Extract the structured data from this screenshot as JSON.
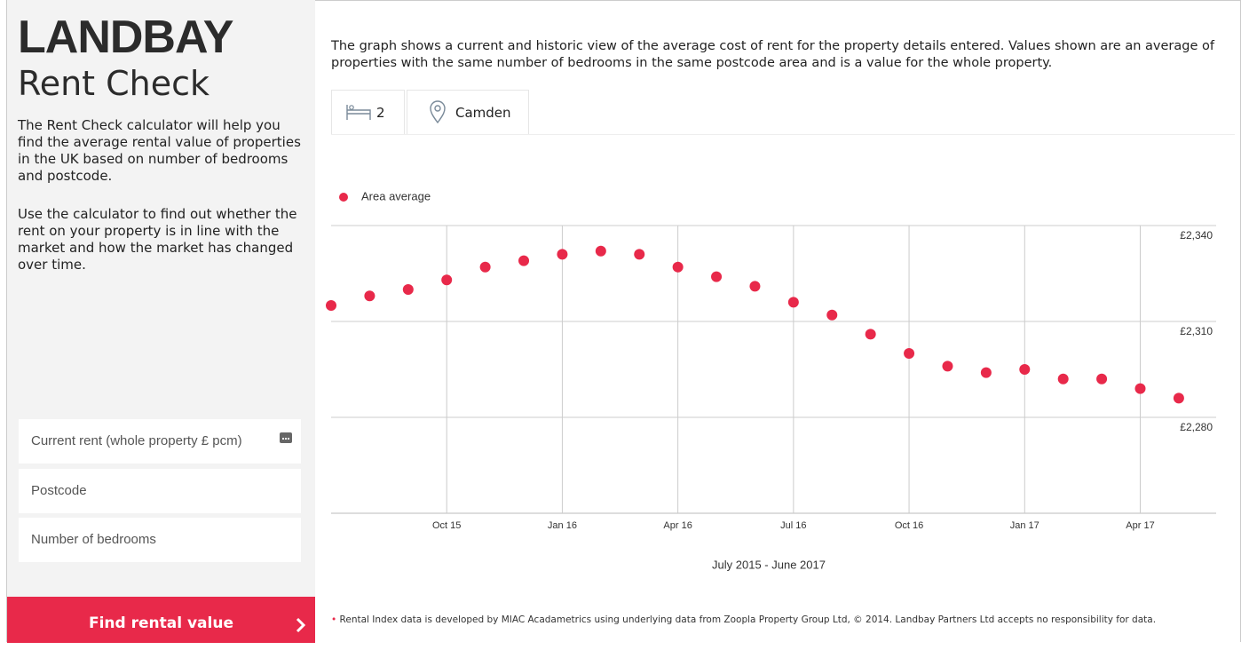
{
  "sidebar": {
    "logo": "LANDBAY",
    "product": "Rent Check",
    "intro": [
      "The Rent Check calculator will help you find the average rental value of properties in the UK based on number of bedrooms and postcode.",
      "Use the calculator to find out whether the rent on your property is in line with the market and how the market has changed over time."
    ],
    "fields": [
      "Current rent (whole property £ pcm)",
      "Postcode",
      "Number of bedrooms"
    ],
    "button": "Find rental value"
  },
  "description": "The graph shows a current and historic view of the average cost of rent for the property details entered. Values shown are an average of properties with the same number of bedrooms in the same postcode area and is a value for the whole property.",
  "filters": {
    "bedrooms": "2",
    "area": "Camden"
  },
  "chart_data": {
    "type": "scatter",
    "categories": [
      null,
      null,
      null,
      "Oct 15",
      null,
      null,
      "Jan 16",
      null,
      null,
      "Apr 16",
      null,
      null,
      "Jul 16",
      null,
      null,
      "Oct 16",
      null,
      null,
      "Jan 17",
      null,
      null,
      "Apr 17",
      null
    ],
    "series": [
      {
        "name": "Area average",
        "color": "#e8294a",
        "values": [
          2315,
          2318,
          2320,
          2323,
          2327,
          2329,
          2331,
          2332,
          2331,
          2327,
          2324,
          2321,
          2316,
          2312,
          2306,
          2300,
          2296,
          2294,
          2295,
          2292,
          2292,
          2289,
          2286
        ]
      }
    ],
    "ylim": [
      2250,
      2340
    ],
    "yticks": [
      {
        "value": 2280,
        "label": "£2,280"
      },
      {
        "value": 2310,
        "label": "£2,310"
      },
      {
        "value": 2340,
        "label": "£2,340"
      }
    ],
    "grid": true,
    "xlabel": "July 2015 - June 2017"
  },
  "footnote": "Rental Index data is developed by MIAC Acadametrics using underlying data from Zoopla Property Group Ltd, © 2014. Landbay Partners Ltd accepts no responsibility for data."
}
